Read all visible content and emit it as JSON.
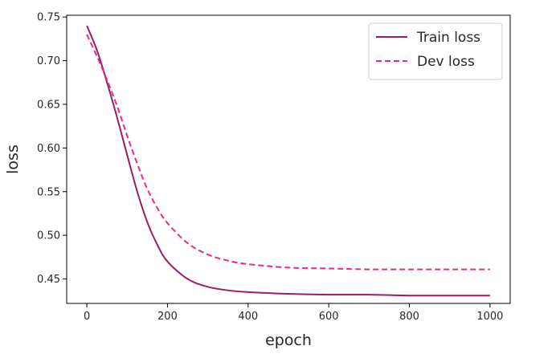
{
  "chart_data": {
    "type": "line",
    "xlabel": "epoch",
    "ylabel": "loss",
    "xlim": [
      -50,
      1050
    ],
    "ylim": [
      0.422,
      0.752
    ],
    "xticks": [
      0,
      200,
      400,
      600,
      800,
      1000
    ],
    "xtick_labels": [
      "0",
      "200",
      "400",
      "600",
      "800",
      "1000"
    ],
    "yticks": [
      0.45,
      0.5,
      0.55,
      0.6,
      0.65,
      0.7,
      0.75
    ],
    "ytick_labels": [
      "0.45",
      "0.50",
      "0.55",
      "0.60",
      "0.65",
      "0.70",
      "0.75"
    ],
    "grid": false,
    "legend": "upper right",
    "series": [
      {
        "name": "Train loss",
        "color": "#9b1d64",
        "style": "solid",
        "x": [
          0,
          25,
          50,
          75,
          100,
          125,
          150,
          175,
          200,
          250,
          300,
          350,
          400,
          500,
          600,
          700,
          800,
          900,
          1000
        ],
        "y": [
          0.74,
          0.712,
          0.675,
          0.635,
          0.592,
          0.55,
          0.515,
          0.489,
          0.47,
          0.45,
          0.441,
          0.437,
          0.435,
          0.433,
          0.432,
          0.432,
          0.431,
          0.431,
          0.431
        ]
      },
      {
        "name": "Dev loss",
        "color": "#e7298a",
        "style": "dashed",
        "x": [
          0,
          25,
          50,
          75,
          100,
          125,
          150,
          175,
          200,
          250,
          300,
          350,
          400,
          500,
          600,
          700,
          800,
          900,
          1000
        ],
        "y": [
          0.73,
          0.705,
          0.678,
          0.648,
          0.614,
          0.582,
          0.553,
          0.531,
          0.514,
          0.491,
          0.478,
          0.471,
          0.467,
          0.463,
          0.462,
          0.461,
          0.461,
          0.461,
          0.461
        ]
      }
    ]
  }
}
